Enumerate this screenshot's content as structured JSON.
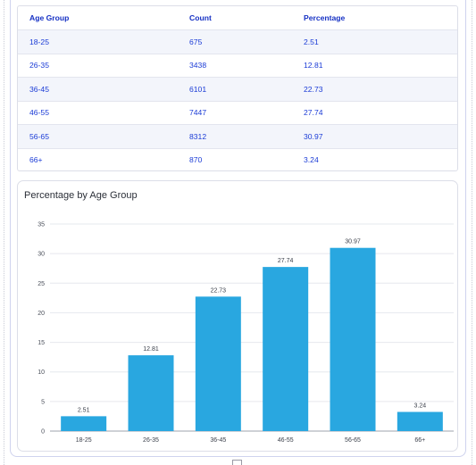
{
  "table": {
    "headers": [
      "Age Group",
      "Count",
      "Percentage"
    ],
    "rows": [
      [
        "18-25",
        "675",
        "2.51"
      ],
      [
        "26-35",
        "3438",
        "12.81"
      ],
      [
        "36-45",
        "6101",
        "22.73"
      ],
      [
        "46-55",
        "7447",
        "27.74"
      ],
      [
        "56-65",
        "8312",
        "30.97"
      ],
      [
        "66+",
        "870",
        "3.24"
      ]
    ]
  },
  "chart_data": {
    "type": "bar",
    "title": "Percentage by Age Group",
    "categories": [
      "18-25",
      "26-35",
      "36-45",
      "46-55",
      "56-65",
      "66+"
    ],
    "values": [
      2.51,
      12.81,
      22.73,
      27.74,
      30.97,
      3.24
    ],
    "data_labels": [
      "2.51",
      "12.81",
      "22.73",
      "27.74",
      "30.97",
      "3.24"
    ],
    "yticks": [
      "0",
      "5",
      "10",
      "15",
      "20",
      "25",
      "30",
      "35"
    ],
    "ylim": [
      0,
      35
    ],
    "grid": true,
    "bar_color": "#29a7e0"
  },
  "colors": {
    "table_text": "#1a3bd6",
    "row_alt_bg": "#f3f5fb",
    "bar": "#29a7e0"
  }
}
